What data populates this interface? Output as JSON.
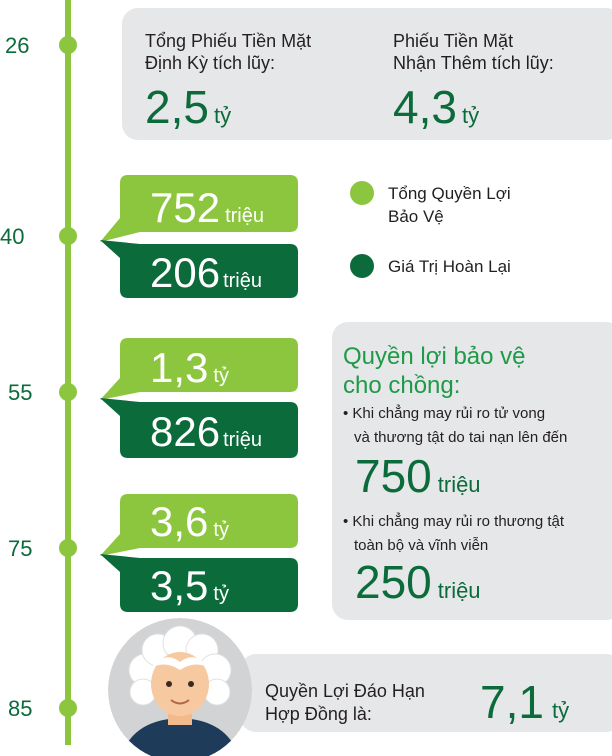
{
  "ages": [
    26,
    40,
    55,
    75,
    85
  ],
  "summary": {
    "periodic": {
      "label_lines": [
        "Tổng Phiếu Tiền Mặt",
        "Định Kỳ tích lũy:"
      ],
      "amount": "2,5",
      "unit": "tỷ"
    },
    "extra": {
      "label_lines": [
        "Phiếu Tiền Mặt",
        "Nhận Thêm tích lũy:"
      ],
      "amount": "4,3",
      "unit": "tỷ"
    }
  },
  "milestones": [
    {
      "protection": {
        "amount": "752",
        "unit": "triệu"
      },
      "surrender": {
        "amount": "206",
        "unit": "triệu"
      }
    },
    {
      "protection": {
        "amount": "1,3",
        "unit": "tỷ"
      },
      "surrender": {
        "amount": "826",
        "unit": "triệu"
      }
    },
    {
      "protection": {
        "amount": "3,6",
        "unit": "tỷ"
      },
      "surrender": {
        "amount": "3,5",
        "unit": "tỷ"
      }
    }
  ],
  "legend": [
    {
      "label_lines": [
        "Tổng Quyền Lợi",
        "Bảo Vệ"
      ]
    },
    {
      "label_lines": [
        "Giá Trị Hoàn Lại"
      ]
    }
  ],
  "spouse": {
    "title_lines": [
      "Quyền lợi bảo vệ",
      "cho chồng:"
    ],
    "items": [
      {
        "text_lines": [
          "• Khi chẳng may rủi ro tử vong",
          "và thương tật do tai nạn lên đến"
        ],
        "amount": "750",
        "unit": "triệu"
      },
      {
        "text_lines": [
          "• Khi chẳng may rủi ro thương tật",
          "toàn bộ và vĩnh viễn"
        ],
        "amount": "250",
        "unit": "triệu"
      }
    ]
  },
  "maturity": {
    "label_lines": [
      "Quyền Lợi Đáo Hạn",
      "Hợp Đồng là:"
    ],
    "amount": "7,1",
    "unit": "tỷ"
  }
}
